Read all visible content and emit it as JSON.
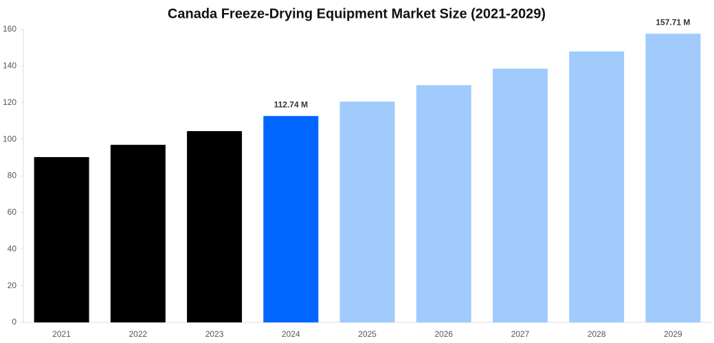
{
  "chart_data": {
    "type": "bar",
    "title": "Canada Freeze-Drying Equipment Market Size (2021-2029)",
    "categories": [
      "2021",
      "2022",
      "2023",
      "2024",
      "2025",
      "2026",
      "2027",
      "2028",
      "2029"
    ],
    "values": [
      90.3,
      97.0,
      104.5,
      112.74,
      120.6,
      129.6,
      138.6,
      148.0,
      157.71
    ],
    "value_labels": [
      null,
      null,
      null,
      "112.74 M",
      null,
      null,
      null,
      null,
      "157.71 M"
    ],
    "colors": [
      "#000000",
      "#000000",
      "#000000",
      "#0066ff",
      "#a0cbfc",
      "#a0cbfc",
      "#a0cbfc",
      "#a0cbfc",
      "#a0cbfc"
    ],
    "ylim": [
      0,
      160
    ],
    "yticks": [
      0,
      20,
      40,
      60,
      80,
      100,
      120,
      140,
      160
    ],
    "grid": false
  }
}
